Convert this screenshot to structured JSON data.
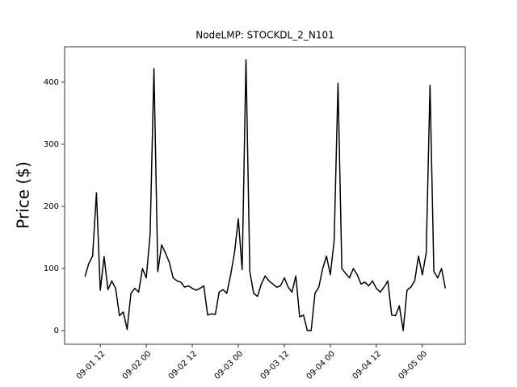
{
  "chart_data": {
    "type": "line",
    "title": "NodeLMP: STOCKDL_2_N101",
    "y_label": "Price ($)",
    "color": "#000000",
    "x": [
      8,
      9,
      10,
      11,
      12,
      13,
      14,
      15,
      16,
      17,
      18,
      19,
      20,
      21,
      22,
      23,
      24,
      25,
      26,
      27,
      28,
      29,
      30,
      31,
      32,
      33,
      34,
      35,
      36,
      37,
      38,
      39,
      40,
      41,
      42,
      43,
      44,
      45,
      46,
      47,
      48,
      49,
      50,
      51,
      52,
      53,
      54,
      55,
      56,
      57,
      58,
      59,
      60,
      61,
      62,
      63,
      64,
      65,
      66,
      67,
      68,
      69,
      70,
      71,
      72,
      73,
      74,
      75,
      76,
      77,
      78,
      79,
      80,
      81,
      82,
      83,
      84,
      85,
      86,
      87,
      88,
      89,
      90,
      91,
      92,
      93,
      94,
      95,
      96,
      97,
      98,
      99,
      100,
      101,
      102
    ],
    "values": [
      87,
      108,
      120,
      222,
      65,
      119,
      66,
      80,
      68,
      24,
      30,
      2,
      60,
      68,
      62,
      100,
      85,
      155,
      422,
      95,
      138,
      125,
      110,
      85,
      80,
      78,
      70,
      72,
      68,
      65,
      68,
      72,
      25,
      27,
      26,
      62,
      66,
      60,
      90,
      125,
      180,
      98,
      436,
      95,
      60,
      55,
      75,
      88,
      80,
      75,
      70,
      72,
      85,
      70,
      62,
      88,
      22,
      25,
      0,
      0,
      60,
      70,
      100,
      120,
      90,
      145,
      398,
      100,
      92,
      85,
      100,
      90,
      75,
      78,
      72,
      80,
      68,
      62,
      70,
      80,
      25,
      24,
      40,
      0,
      65,
      70,
      80,
      120,
      90,
      125,
      395,
      95,
      85,
      100,
      68
    ],
    "xlim": [
      2.7,
      107.2
    ],
    "xticks": [
      {
        "value": 12,
        "label": "09-01 12"
      },
      {
        "value": 24,
        "label": "09-02 00"
      },
      {
        "value": 36,
        "label": "09-02 12"
      },
      {
        "value": 48,
        "label": "09-03 00"
      },
      {
        "value": 60,
        "label": "09-03 12"
      },
      {
        "value": 72,
        "label": "09-04 00"
      },
      {
        "value": 84,
        "label": "09-04 12"
      },
      {
        "value": 96,
        "label": "09-05 00"
      }
    ],
    "ylim": [
      -22,
      457
    ],
    "yticks": [
      0,
      100,
      200,
      300,
      400
    ],
    "grid": false
  }
}
